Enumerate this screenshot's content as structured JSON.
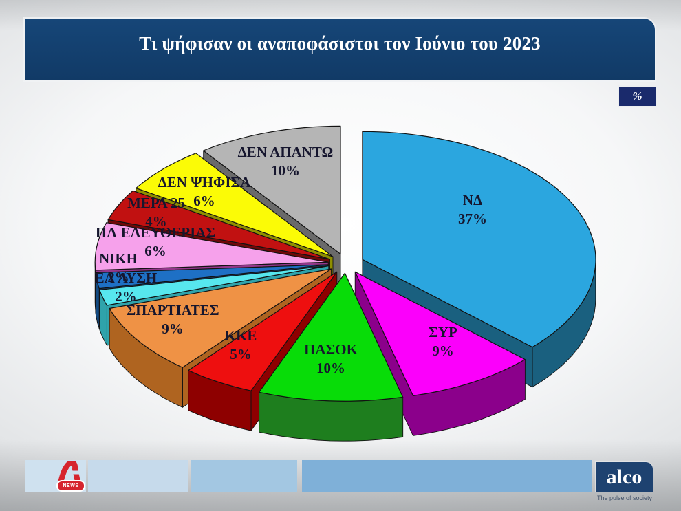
{
  "title": "Τι ψήφισαν οι αναποφάσιστοι τον Ιούνιο του 2023",
  "unit_badge": "%",
  "chart_data": {
    "type": "pie",
    "style": "3d-exploded",
    "start_angle_deg": -90,
    "direction": "clockwise",
    "unit": "%",
    "title": "Τι ψήφισαν οι αναποφάσιστοι τον Ιούνιο του 2023",
    "slices": [
      {
        "label": "ΝΔ",
        "value": 37,
        "color": "#2BA6DF",
        "side_color": "#1A607F"
      },
      {
        "label": "ΣΥΡ",
        "value": 9,
        "color": "#FB00FB",
        "side_color": "#8B008B"
      },
      {
        "label": "ΠΑΣΟΚ",
        "value": 10,
        "color": "#08DC08",
        "side_color": "#1E7E1E"
      },
      {
        "label": "ΚΚΕ",
        "value": 5,
        "color": "#EE0F0F",
        "side_color": "#8E0000"
      },
      {
        "label": "ΣΠΑΡΤΙΑΤΕΣ",
        "value": 9,
        "color": "#EF9245",
        "side_color": "#AF6420"
      },
      {
        "label": "ΕΛ ΛΥΣΗ",
        "value": 2,
        "color": "#57E7EE",
        "side_color": "#2FA3AB"
      },
      {
        "label": "ΝΙΚΗ",
        "value": 2,
        "color": "#1E70C5",
        "side_color": "#124A82"
      },
      {
        "label": "ΠΛ ΕΛΕΥΘΕΡΙΑΣ",
        "value": 6,
        "color": "#F6A1EB",
        "side_color": "#93378B"
      },
      {
        "label": "ΜΕΡΑ 25",
        "value": 4,
        "color": "#C11111",
        "side_color": "#6E0909"
      },
      {
        "label": "ΔΕΝ ΨΗΦΙΣΑ",
        "value": 6,
        "color": "#FBFB06",
        "side_color": "#8F8F00"
      },
      {
        "label": "ΔΕΝ ΑΠΑΝΤΩ",
        "value": 10,
        "color": "#B5B5B5",
        "side_color": "#6A6A6A"
      }
    ]
  },
  "footer": {
    "alpha_news": {
      "name": "Alpha News",
      "badge_text": "NEWS"
    },
    "alco": {
      "logo_text": "alco",
      "tagline": "The pulse of society"
    }
  }
}
